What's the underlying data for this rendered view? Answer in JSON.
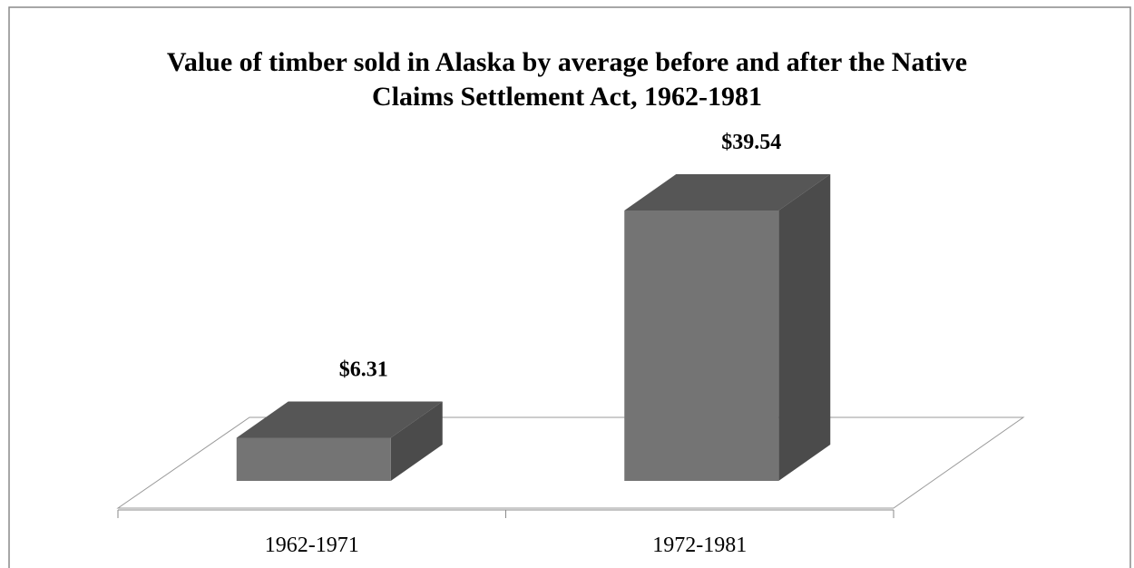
{
  "chart_data": {
    "type": "bar3d",
    "title": "Value of timber sold in Alaska by average before and after the Native Claims Settlement Act,  1962-1981",
    "categories": [
      "1962-1971",
      "1972-1981"
    ],
    "values": [
      6.31,
      39.54
    ],
    "value_labels": [
      "$6.31",
      "$39.54"
    ],
    "colors": {
      "front": "#747474",
      "top": "#565656",
      "side": "#4b4b4b"
    }
  }
}
